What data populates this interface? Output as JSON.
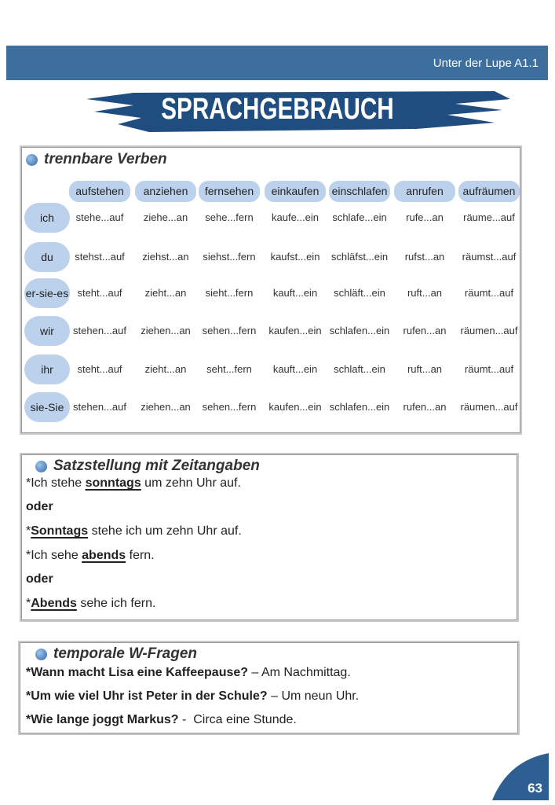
{
  "header": {
    "label": "Unter der Lupe A1.1",
    "title": "SPRACHGEBRAUCH"
  },
  "verbs": {
    "title": "trennbare Verben",
    "headers": [
      "aufstehen",
      "anziehen",
      "fernsehen",
      "einkaufen",
      "einschlafen",
      "anrufen",
      "aufräumen"
    ],
    "rows": [
      [
        "ich",
        "stehe...auf",
        "ziehe...an",
        "sehe...fern",
        "kaufe...ein",
        "schlafe...ein",
        "rufe...an",
        "räume...auf"
      ],
      [
        "du",
        "stehst...auf",
        "ziehst...an",
        "siehst...fern",
        "kaufst...ein",
        "schläfst...ein",
        "rufst...an",
        "räumst...auf"
      ],
      [
        "er-sie-es",
        "steht...auf",
        "zieht...an",
        "sieht...fern",
        "kauft...ein",
        "schläft...ein",
        "ruft...an",
        "räumt...auf"
      ],
      [
        "wir",
        "stehen...auf",
        "ziehen...an",
        "sehen...fern",
        "kaufen...ein",
        "schlafen...ein",
        "rufen...an",
        "räumen...auf"
      ],
      [
        "ihr",
        "steht...auf",
        "zieht...an",
        "seht...fern",
        "kauft...ein",
        "schlaft...ein",
        "ruft...an",
        "räumt...auf"
      ],
      [
        "sie-Sie",
        "stehen...auf",
        "ziehen...an",
        "sehen...fern",
        "kaufen...ein",
        "schlafen...ein",
        "rufen...an",
        "räumen...auf"
      ]
    ]
  },
  "word_order": {
    "title": "Satzstellung mit Zeitangaben",
    "lines": [
      [
        "*Ich stehe ",
        {
          "underline": "sonntags"
        },
        " um zehn Uhr auf."
      ],
      [
        {
          "bold": "oder"
        }
      ],
      [
        "*",
        {
          "underline": "Sonntags"
        },
        " stehe ich um zehn Uhr auf."
      ],
      [
        "*Ich sehe ",
        {
          "underline": "abends"
        },
        " fern."
      ],
      [
        {
          "bold": "oder"
        }
      ],
      [
        "*",
        {
          "underline": "Abends"
        },
        " sehe ich fern."
      ]
    ]
  },
  "questions": {
    "title": "temporale W-Fragen",
    "lines": [
      {
        "question": "*Wann macht Lisa eine Kaffeepause?",
        "answer": " – Am Nachmittag."
      },
      {
        "question": "*Um wie viel Uhr ist Peter in der Schule?",
        "answer": " – Um neun Uhr."
      },
      {
        "question": "*Wie lange joggt Markus?",
        "answer": " -  Circa eine Stunde."
      }
    ]
  },
  "page_number": "63"
}
